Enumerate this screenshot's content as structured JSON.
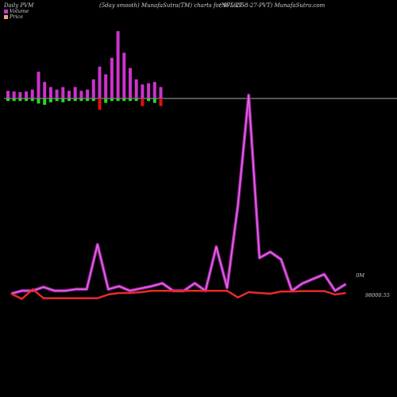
{
  "header": {
    "left": "Daily PVM",
    "mid": "(5day smooth) MunafaSutra(TM) charts for 975935",
    "right": "(NFL-27-8-27-PVT) MunafaSutra.com"
  },
  "legend": [
    {
      "label": "Volume",
      "color": "#cc33cc"
    },
    {
      "label": "Price",
      "color": "#e8a878"
    }
  ],
  "colors": {
    "volume_line": "#cc33cc",
    "price_line": "#e82a2a",
    "bar_up": "#cc33cc",
    "bar_green": "#22dd22",
    "bar_red": "#dd1111",
    "baseline": "#aaaaaa"
  },
  "right_labels": {
    "volume": "0M",
    "price": "98000.55"
  },
  "chart_data": {
    "type": "line",
    "title": "",
    "x": [
      1,
      2,
      3,
      4,
      5,
      6,
      7,
      8,
      9,
      10,
      11,
      12,
      13,
      14,
      15,
      16,
      17,
      18,
      19,
      20,
      21,
      22,
      23,
      24,
      25,
      26,
      27,
      28,
      29,
      30,
      31,
      32
    ],
    "series": [
      {
        "name": "Volume",
        "values": [
          0.32,
          0.36,
          0.36,
          0.41,
          0.36,
          0.36,
          0.38,
          0.38,
          0.98,
          0.38,
          0.42,
          0.36,
          0.39,
          0.42,
          0.46,
          0.36,
          0.36,
          0.46,
          0.36,
          0.95,
          0.4,
          1.5,
          2.98,
          0.8,
          0.88,
          0.78,
          0.36,
          0.46,
          0.52,
          0.58,
          0.36,
          0.45
        ]
      },
      {
        "name": "Price",
        "values": [
          0.32,
          0.25,
          0.38,
          0.26,
          0.26,
          0.26,
          0.26,
          0.26,
          0.26,
          0.31,
          0.33,
          0.33,
          0.34,
          0.36,
          0.36,
          0.36,
          0.36,
          0.36,
          0.36,
          0.36,
          0.36,
          0.27,
          0.34,
          0.33,
          0.32,
          0.35,
          0.35,
          0.355,
          0.355,
          0.355,
          0.31,
          0.33
        ]
      }
    ],
    "bars": {
      "pos": [
        0.6,
        0.55,
        0.5,
        0.55,
        0.7,
        2.1,
        1.3,
        0.9,
        0.7,
        0.9,
        0.6,
        0.9,
        0.6,
        0.7,
        1.5,
        2.5,
        1.9,
        3.2,
        5.3,
        3.6,
        2.4,
        1.5,
        1.1,
        1.2,
        1.3,
        0.9
      ],
      "neg": [
        -0.2,
        -0.2,
        -0.2,
        -0.2,
        -0.2,
        -0.4,
        -0.5,
        -0.3,
        -0.2,
        -0.3,
        -0.2,
        -0.2,
        -0.2,
        -0.2,
        -0.2,
        -0.9,
        -0.35,
        -0.2,
        -0.2,
        -0.2,
        -0.2,
        -0.2,
        -0.6,
        -0.2,
        -0.35,
        -0.6
      ],
      "neg_color": [
        "g",
        "g",
        "g",
        "g",
        "g",
        "g",
        "g",
        "g",
        "g",
        "g",
        "g",
        "g",
        "g",
        "g",
        "g",
        "r",
        "g",
        "g",
        "g",
        "g",
        "g",
        "g",
        "r",
        "g",
        "g",
        "r"
      ]
    },
    "ylim": [
      0,
      3.1
    ]
  }
}
